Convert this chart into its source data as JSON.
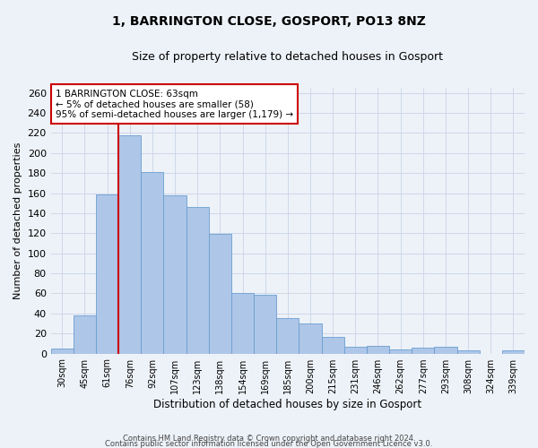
{
  "title1": "1, BARRINGTON CLOSE, GOSPORT, PO13 8NZ",
  "title2": "Size of property relative to detached houses in Gosport",
  "xlabel": "Distribution of detached houses by size in Gosport",
  "ylabel": "Number of detached properties",
  "categories": [
    "30sqm",
    "45sqm",
    "61sqm",
    "76sqm",
    "92sqm",
    "107sqm",
    "123sqm",
    "138sqm",
    "154sqm",
    "169sqm",
    "185sqm",
    "200sqm",
    "215sqm",
    "231sqm",
    "246sqm",
    "262sqm",
    "277sqm",
    "293sqm",
    "308sqm",
    "324sqm",
    "339sqm"
  ],
  "values": [
    5,
    38,
    159,
    218,
    181,
    158,
    146,
    119,
    60,
    59,
    35,
    30,
    17,
    7,
    8,
    4,
    6,
    7,
    3,
    0,
    3
  ],
  "bar_color": "#aec6e8",
  "bar_edge_color": "#6a9fd0",
  "highlight_bar_index": 2,
  "highlight_color": "#cc0000",
  "red_line_x": 2.5,
  "annotation_text": "1 BARRINGTON CLOSE: 63sqm\n← 5% of detached houses are smaller (58)\n95% of semi-detached houses are larger (1,179) →",
  "annotation_box_color": "#ffffff",
  "annotation_box_edge": "#cc0000",
  "ylim": [
    0,
    265
  ],
  "yticks": [
    0,
    20,
    40,
    60,
    80,
    100,
    120,
    140,
    160,
    180,
    200,
    220,
    240,
    260
  ],
  "grid_color": "#c8d4e8",
  "background_color": "#edf2f8",
  "footer1": "Contains HM Land Registry data © Crown copyright and database right 2024.",
  "footer2": "Contains public sector information licensed under the Open Government Licence v3.0."
}
